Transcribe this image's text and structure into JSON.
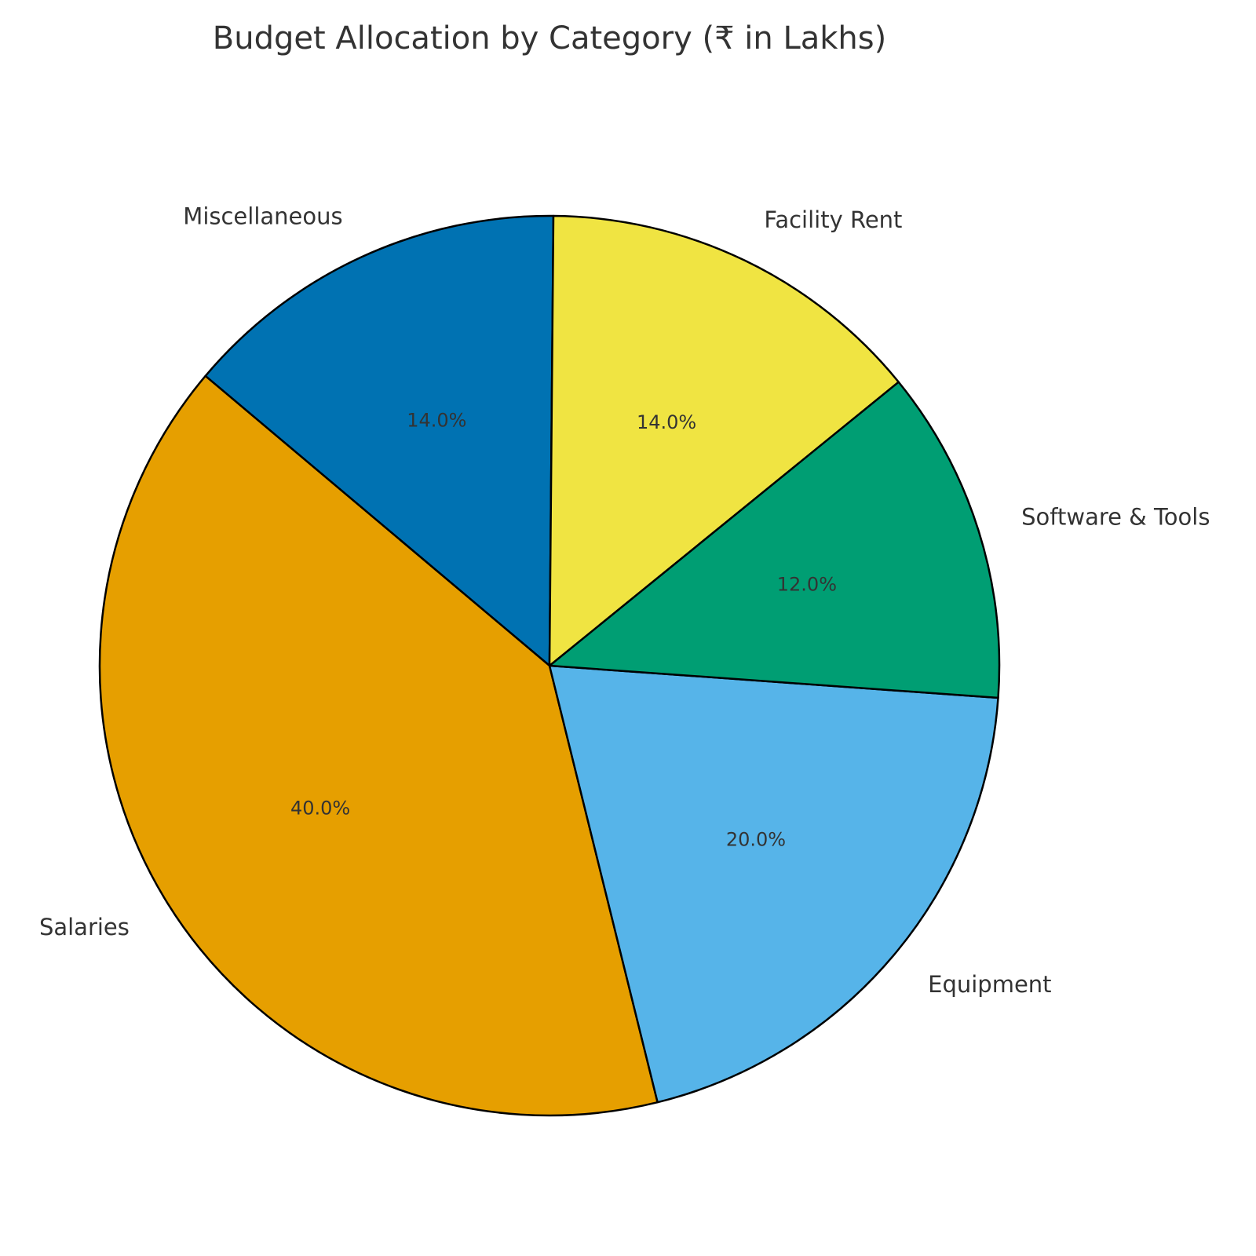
{
  "chart_data": {
    "type": "pie",
    "title": "Budget Allocation by Category (₹ in Lakhs)",
    "start_angle_deg": 89.5,
    "direction": "counterclockwise",
    "slices": [
      {
        "label": "Miscellaneous",
        "percent": 14.0,
        "percent_label": "14.0%",
        "color": "#0072B2"
      },
      {
        "label": "Salaries",
        "percent": 40.0,
        "percent_label": "40.0%",
        "color": "#E69F00"
      },
      {
        "label": "Equipment",
        "percent": 20.0,
        "percent_label": "20.0%",
        "color": "#56B4E9"
      },
      {
        "label": "Software & Tools",
        "percent": 12.0,
        "percent_label": "12.0%",
        "color": "#009E73"
      },
      {
        "label": "Facility Rent",
        "percent": 14.0,
        "percent_label": "14.0%",
        "color": "#F0E442"
      }
    ]
  }
}
